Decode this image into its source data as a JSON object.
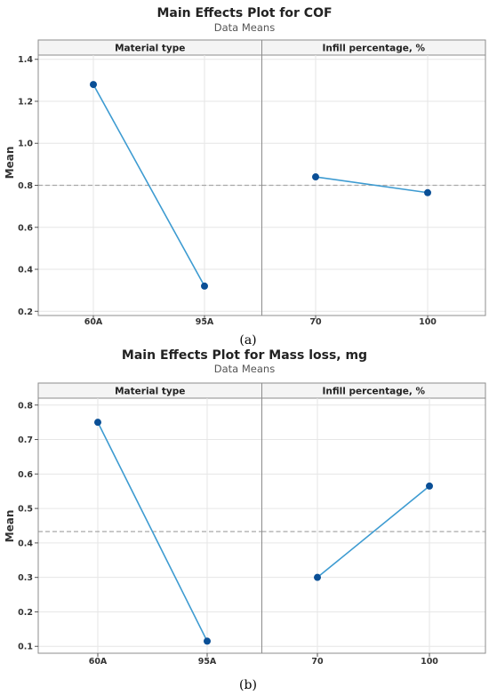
{
  "chart_data": [
    {
      "type": "line",
      "title": "Main Effects Plot for COF",
      "subtitle": "Data Means",
      "ylabel": "Mean",
      "caption": "(a)",
      "ylim": [
        0.18,
        1.42
      ],
      "yticks": [
        0.2,
        0.4,
        0.6,
        0.8,
        1.0,
        1.2,
        1.4
      ],
      "ytick_labels": [
        "0.2",
        "0.4",
        "0.6",
        "0.8",
        "1.0",
        "1.2",
        "1.4"
      ],
      "reference_mean": 0.8,
      "grid": true,
      "panels": [
        {
          "name": "Material type",
          "categories": [
            "60A",
            "95A"
          ],
          "values": [
            1.28,
            0.32
          ],
          "color": "#3d9bd1"
        },
        {
          "name": "Infill percentage, %",
          "categories": [
            "70",
            "100"
          ],
          "values": [
            0.84,
            0.765
          ],
          "color": "#3d9bd1"
        }
      ]
    },
    {
      "type": "line",
      "title": "Main Effects Plot for Mass loss, mg",
      "subtitle": "Data Means",
      "ylabel": "Mean",
      "caption": "(b)",
      "ylim": [
        0.08,
        0.82
      ],
      "yticks": [
        0.1,
        0.2,
        0.3,
        0.4,
        0.5,
        0.6,
        0.7,
        0.8
      ],
      "ytick_labels": [
        "0.1",
        "0.2",
        "0.3",
        "0.4",
        "0.5",
        "0.6",
        "0.7",
        "0.8"
      ],
      "reference_mean": 0.433,
      "grid": true,
      "panels": [
        {
          "name": "Material type",
          "categories": [
            "60A",
            "95A"
          ],
          "values": [
            0.75,
            0.115
          ],
          "color": "#3d9bd1"
        },
        {
          "name": "Infill percentage, %",
          "categories": [
            "70",
            "100"
          ],
          "values": [
            0.3,
            0.565
          ],
          "color": "#3d9bd1"
        }
      ]
    }
  ],
  "colors": {
    "line": "#3d9bd1",
    "marker": "#0a4f96",
    "grid": "#e6e6e6",
    "reference": "#a8a8a8",
    "frame": "#8c8c8c",
    "strip_fill": "#f4f4f4"
  }
}
